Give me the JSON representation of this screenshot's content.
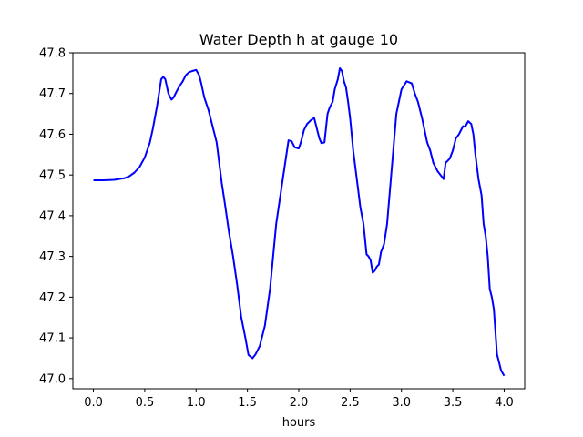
{
  "chart_data": {
    "type": "line",
    "title": "Water Depth h at gauge 10",
    "xlabel": "hours",
    "ylabel": "",
    "xlim": [
      -0.2,
      4.2
    ],
    "ylim": [
      46.975,
      47.8
    ],
    "xticks": [
      0.0,
      0.5,
      1.0,
      1.5,
      2.0,
      2.5,
      3.0,
      3.5,
      4.0
    ],
    "xtick_labels": [
      "0.0",
      "0.5",
      "1.0",
      "1.5",
      "2.0",
      "2.5",
      "3.0",
      "3.5",
      "4.0"
    ],
    "yticks": [
      47.0,
      47.1,
      47.2,
      47.3,
      47.4,
      47.5,
      47.6,
      47.7,
      47.8
    ],
    "ytick_labels": [
      "47.0",
      "47.1",
      "47.2",
      "47.3",
      "47.4",
      "47.5",
      "47.6",
      "47.7",
      "47.8"
    ],
    "grid": false,
    "colors": {
      "line": "#0000ff",
      "axes": "#000000",
      "background": "#ffffff"
    },
    "series": [
      {
        "x": [
          0.0,
          0.1,
          0.2,
          0.3,
          0.35,
          0.4,
          0.45,
          0.5,
          0.55,
          0.58,
          0.62,
          0.66,
          0.68,
          0.7,
          0.73,
          0.76,
          0.78,
          0.8,
          0.83,
          0.87,
          0.9,
          0.93,
          0.96,
          1.0,
          1.03,
          1.05,
          1.08,
          1.12,
          1.16,
          1.2,
          1.25,
          1.28,
          1.32,
          1.36,
          1.4,
          1.44,
          1.48,
          1.51,
          1.55,
          1.58,
          1.62,
          1.67,
          1.72,
          1.78,
          1.85,
          1.9,
          1.93,
          1.96,
          2.0,
          2.02,
          2.05,
          2.08,
          2.12,
          2.15,
          2.18,
          2.2,
          2.22,
          2.25,
          2.28,
          2.3,
          2.33,
          2.35,
          2.38,
          2.4,
          2.42,
          2.44,
          2.46,
          2.48,
          2.5,
          2.53,
          2.56,
          2.6,
          2.63,
          2.66,
          2.68,
          2.7,
          2.72,
          2.74,
          2.76,
          2.78,
          2.8,
          2.83,
          2.86,
          2.9,
          2.95,
          3.0,
          3.05,
          3.1,
          3.13,
          3.16,
          3.2,
          3.25,
          3.28,
          3.31,
          3.35,
          3.38,
          3.41,
          3.43,
          3.45,
          3.47,
          3.5,
          3.53,
          3.56,
          3.6,
          3.62,
          3.65,
          3.68,
          3.7,
          3.72,
          3.75,
          3.78,
          3.8,
          3.82,
          3.84,
          3.86,
          3.88,
          3.9,
          3.93,
          3.95,
          3.97,
          4.0
        ],
        "y": [
          47.487,
          47.487,
          47.488,
          47.492,
          47.497,
          47.506,
          47.52,
          47.543,
          47.58,
          47.615,
          47.67,
          47.735,
          47.741,
          47.735,
          47.7,
          47.685,
          47.69,
          47.7,
          47.715,
          47.73,
          47.745,
          47.752,
          47.755,
          47.758,
          47.745,
          47.725,
          47.69,
          47.66,
          47.62,
          47.58,
          47.48,
          47.43,
          47.36,
          47.3,
          47.23,
          47.15,
          47.1,
          47.058,
          47.05,
          47.06,
          47.08,
          47.13,
          47.22,
          47.38,
          47.5,
          47.585,
          47.583,
          47.568,
          47.565,
          47.58,
          47.61,
          47.625,
          47.635,
          47.64,
          47.61,
          47.59,
          47.578,
          47.58,
          47.65,
          47.665,
          47.68,
          47.71,
          47.735,
          47.762,
          47.755,
          47.73,
          47.715,
          47.68,
          47.64,
          47.56,
          47.5,
          47.42,
          47.38,
          47.305,
          47.3,
          47.29,
          47.26,
          47.265,
          47.275,
          47.28,
          47.31,
          47.33,
          47.38,
          47.5,
          47.65,
          47.71,
          47.73,
          47.725,
          47.7,
          47.68,
          47.64,
          47.58,
          47.56,
          47.53,
          47.51,
          47.5,
          47.49,
          47.53,
          47.535,
          47.54,
          47.56,
          47.59,
          47.6,
          47.62,
          47.618,
          47.632,
          47.625,
          47.6,
          47.55,
          47.49,
          47.45,
          47.38,
          47.35,
          47.3,
          47.22,
          47.2,
          47.17,
          47.06,
          47.04,
          47.02,
          47.007
        ]
      }
    ]
  }
}
